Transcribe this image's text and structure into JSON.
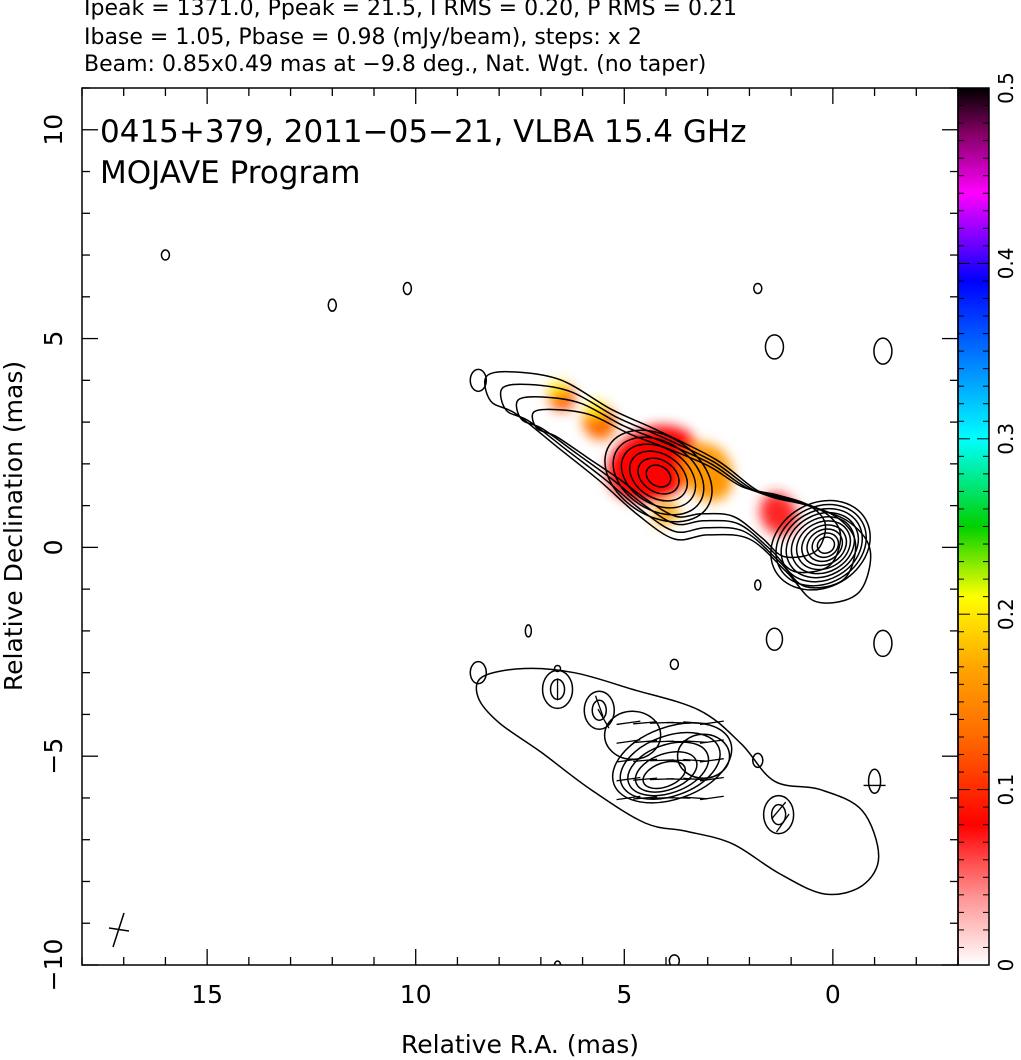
{
  "header": {
    "line1": "Ipeak = 1371.0, Ppeak = 21.5, I RMS = 0.20, P RMS = 0.21",
    "line2": "Ibase = 1.05, Pbase = 0.98 (mJy/beam), steps: x 2",
    "line3": "Beam: 0.85x0.49 mas at −9.8 deg., Nat. Wgt. (no taper)"
  },
  "chart_data": {
    "type": "contour",
    "title_line1": "0415+379, 2011−05−21, VLBA 15.4 GHz",
    "title_line2": "MOJAVE Program",
    "xlabel": "Relative R.A. (mas)",
    "ylabel": "Relative Declination (mas)",
    "xlim": [
      18,
      -3
    ],
    "ylim": [
      -10,
      11
    ],
    "x_ticks": [
      "15",
      "10",
      "5",
      "0"
    ],
    "y_ticks": [
      "10",
      "5",
      "0",
      "−5",
      "−10"
    ],
    "colorbar": {
      "range": [
        0,
        0.5
      ],
      "ticks": [
        "0",
        "0.1",
        "0.2",
        "0.3",
        "0.4",
        "0.5"
      ]
    },
    "upper_map": {
      "contour_levels": 10,
      "core": {
        "x": 0.2,
        "y": 0.1
      },
      "knot": {
        "x": 4.3,
        "y": 1.9
      },
      "pol_blobs": [
        {
          "x": 4.3,
          "y": 2.0,
          "val": 0.08
        },
        {
          "x": 3.0,
          "y": 1.8,
          "val": 0.16
        },
        {
          "x": 5.6,
          "y": 3.0,
          "val": 0.13
        },
        {
          "x": 6.5,
          "y": 3.6,
          "val": 0.12
        },
        {
          "x": 1.3,
          "y": 0.8,
          "val": 0.07
        },
        {
          "x": 6.6,
          "y": 3.8,
          "val": 0.2
        },
        {
          "x": 5.7,
          "y": 3.3,
          "val": 0.2
        },
        {
          "x": 4.0,
          "y": 0.8,
          "val": 0.17
        }
      ]
    },
    "lower_map": {
      "knot": {
        "x": 3.9,
        "y": -5.4
      },
      "components": [
        {
          "x": 6.6,
          "y": -3.4
        },
        {
          "x": 5.6,
          "y": -3.9
        },
        {
          "x": 1.3,
          "y": -6.4
        }
      ]
    }
  },
  "colors": {
    "axes": "#000000",
    "contour": "#000000",
    "background": "#ffffff"
  }
}
